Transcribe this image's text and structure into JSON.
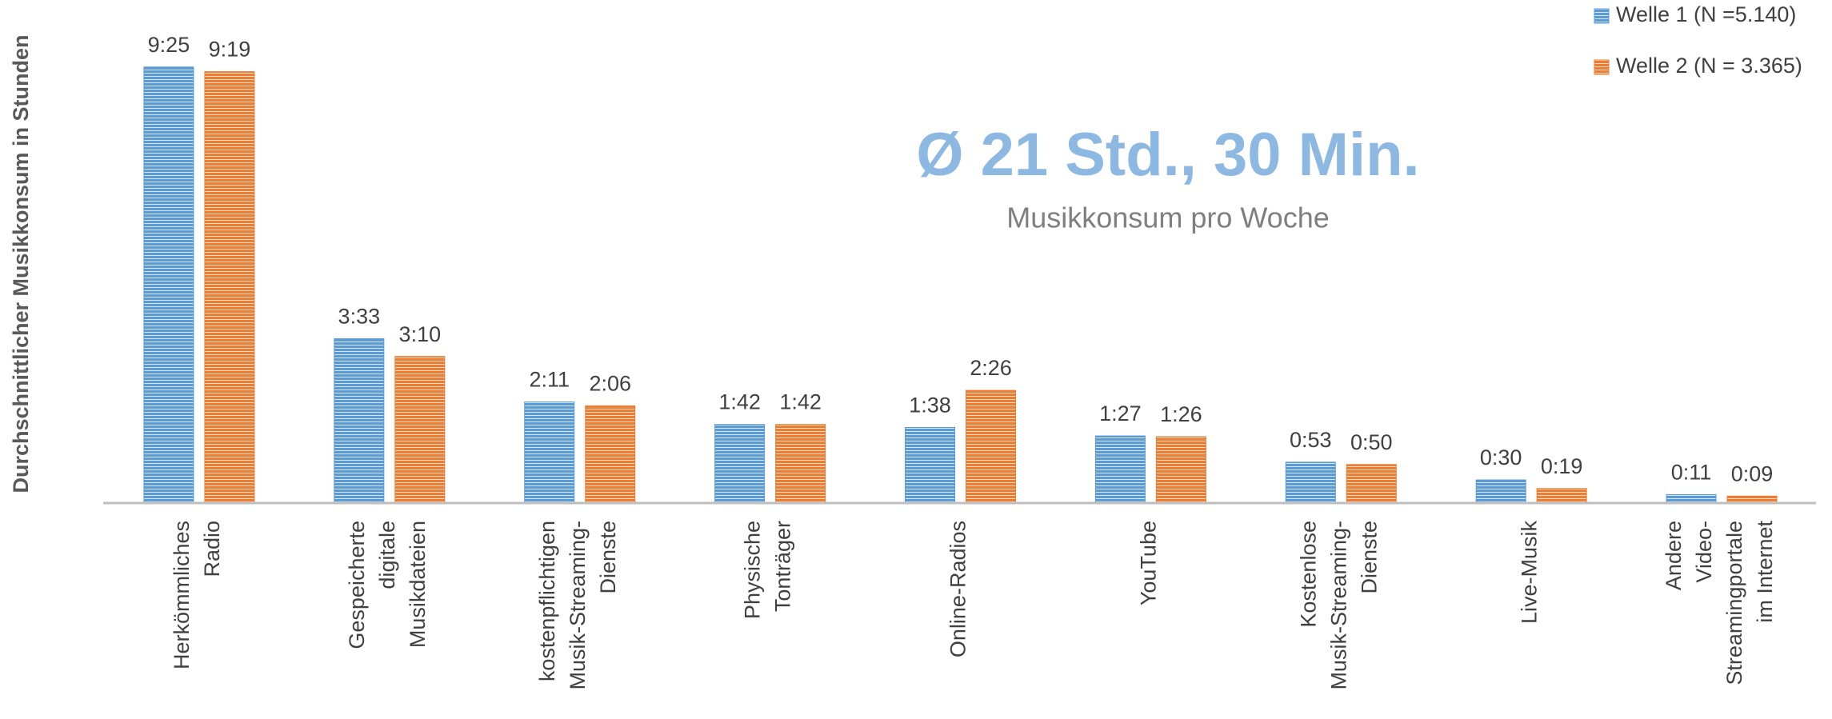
{
  "chart_data": {
    "type": "bar",
    "title": "Ø 21 Std., 30 Min.",
    "subtitle": "Musikkonsum pro Woche",
    "y_axis_label": "Durchschnittlicher Musikkonsum in Stunden",
    "categories": [
      [
        "Herkömmliches",
        "Radio"
      ],
      [
        "Gespeicherte",
        "digitale",
        "Musikdateien"
      ],
      [
        "kostenpflichtigen",
        "Musik-Streaming-",
        "Dienste"
      ],
      [
        "Physische",
        "Tonträger"
      ],
      [
        "Online-Radios"
      ],
      [
        "YouTube"
      ],
      [
        "Kostenlose",
        "Musik-Streaming-",
        "Dienste"
      ],
      [
        "Live-Musik"
      ],
      [
        "Andere",
        "Video-",
        "Streamingportale",
        "im Internet"
      ]
    ],
    "series": [
      {
        "name": "Welle 1 (N =5.140)",
        "color": "#5b9bd5",
        "values": [
          9.4167,
          3.55,
          2.1833,
          1.7,
          1.6333,
          1.45,
          0.8833,
          0.5,
          0.1833
        ],
        "value_labels": [
          "9:25",
          "3:33",
          "2:11",
          "1:42",
          "1:38",
          "1:27",
          "0:53",
          "0:30",
          "0:11"
        ]
      },
      {
        "name": "Welle 2 (N = 3.365)",
        "color": "#ed7d31",
        "values": [
          9.3167,
          3.1667,
          2.1,
          1.7,
          2.4333,
          1.4333,
          0.8333,
          0.3167,
          0.15
        ],
        "value_labels": [
          "9:19",
          "3:10",
          "2:06",
          "1:42",
          "2:26",
          "1:26",
          "0:50",
          "0:19",
          "0:09"
        ]
      }
    ],
    "ylim": [
      0,
      10
    ],
    "legend": "top-right"
  }
}
